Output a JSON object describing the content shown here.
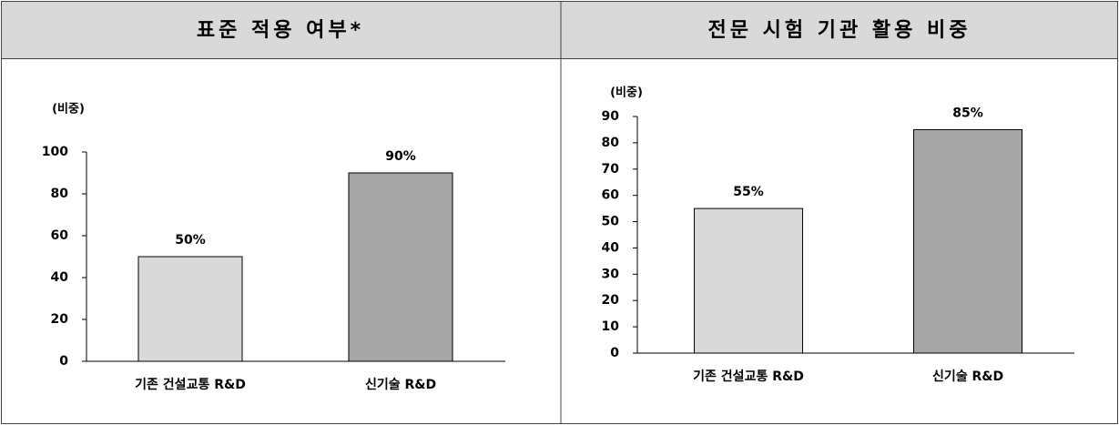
{
  "chart_data": [
    {
      "type": "bar",
      "title": "표준 적용 여부*",
      "y_label": "(비중)",
      "categories": [
        "기존 건설교통 R&D",
        "신기술 R&D"
      ],
      "values": [
        50,
        90
      ],
      "value_labels": [
        "50%",
        "90%"
      ],
      "colors": [
        "#d9d9d9",
        "#a6a6a6"
      ],
      "ylim": [
        0,
        100
      ],
      "yticks": [
        0,
        20,
        40,
        60,
        80,
        100
      ]
    },
    {
      "type": "bar",
      "title": "전문 시험 기관 활용 비중",
      "y_label": "(비중)",
      "categories": [
        "기존 건설교통 R&D",
        "신기술 R&D"
      ],
      "values": [
        55,
        85
      ],
      "value_labels": [
        "55%",
        "85%"
      ],
      "colors": [
        "#d9d9d9",
        "#a6a6a6"
      ],
      "ylim": [
        0,
        90
      ],
      "yticks": [
        0,
        10,
        20,
        30,
        40,
        50,
        60,
        70,
        80,
        90
      ]
    }
  ]
}
